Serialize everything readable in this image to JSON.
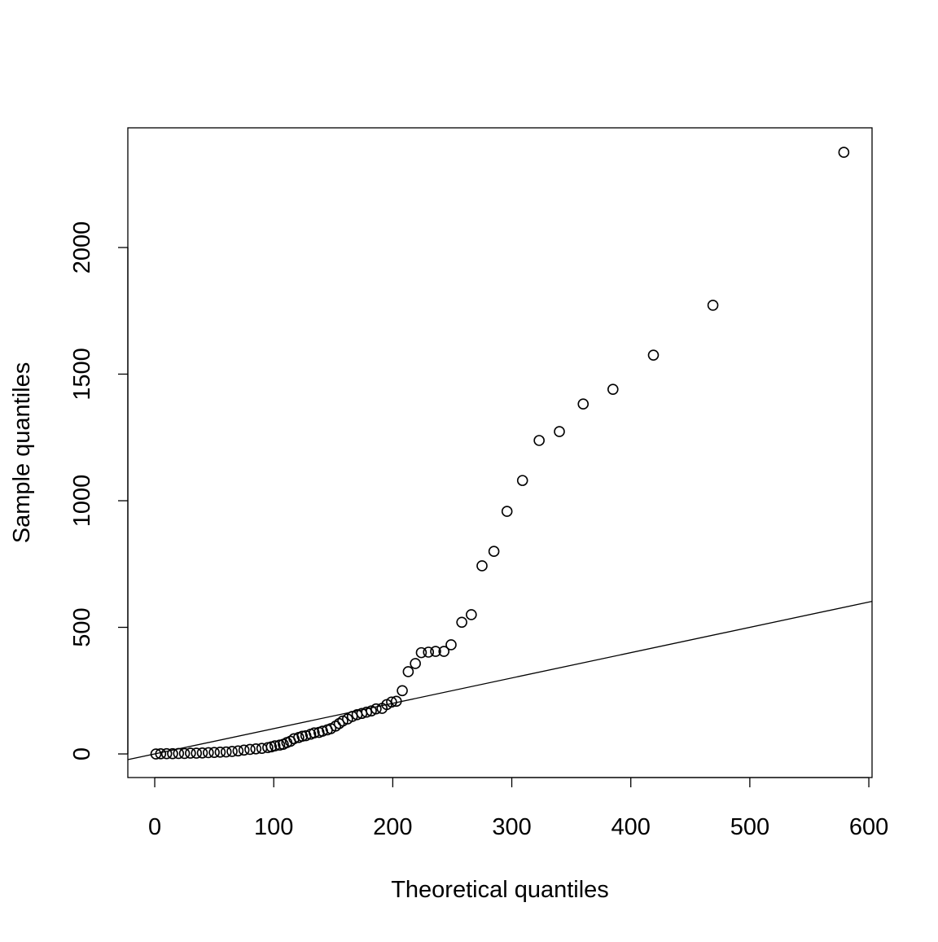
{
  "chart_data": {
    "type": "scatter",
    "x_label": "Theoretical quantiles",
    "y_label": "Sample quantiles",
    "xlim": [
      -22.6,
      602.7
    ],
    "ylim": [
      -93.2,
      2472.7
    ],
    "xticks": [
      0,
      100,
      200,
      300,
      400,
      500,
      600
    ],
    "yticks": [
      0,
      500,
      1000,
      1500,
      2000
    ],
    "reference_line": {
      "intercept": 0,
      "slope": 1
    },
    "color": "#000000",
    "series": [
      {
        "name": "Sample",
        "x": [
          1,
          5,
          10,
          15,
          20,
          25,
          30,
          35,
          40,
          45,
          50,
          55,
          60,
          65,
          70,
          75,
          80,
          85,
          90,
          95,
          98,
          101,
          105,
          108,
          111,
          114,
          117,
          121,
          124,
          127,
          131,
          134,
          138,
          141,
          145,
          148,
          152,
          155,
          158,
          162,
          166,
          170,
          174,
          178,
          182,
          186,
          191,
          195,
          199,
          203,
          208,
          213,
          219,
          224,
          230,
          236,
          243,
          249,
          258,
          266,
          275,
          285,
          296,
          309,
          323,
          340,
          360,
          385,
          419,
          469,
          579
        ],
        "values": [
          0,
          0.5,
          1,
          1,
          2,
          2,
          3,
          3,
          4,
          5,
          6,
          7,
          8,
          10,
          12,
          15,
          18,
          20,
          22,
          25,
          28,
          32,
          35,
          38,
          45,
          50,
          60,
          65,
          70,
          72,
          78,
          83,
          85,
          90,
          95,
          100,
          110,
          120,
          130,
          138,
          148,
          155,
          160,
          165,
          170,
          178,
          180,
          195,
          205,
          208,
          250,
          325,
          357,
          400,
          402,
          405,
          405,
          431,
          520,
          550,
          743,
          800,
          958,
          1080,
          1238,
          1273,
          1382,
          1440,
          1575,
          1772,
          2376
        ]
      }
    ]
  }
}
